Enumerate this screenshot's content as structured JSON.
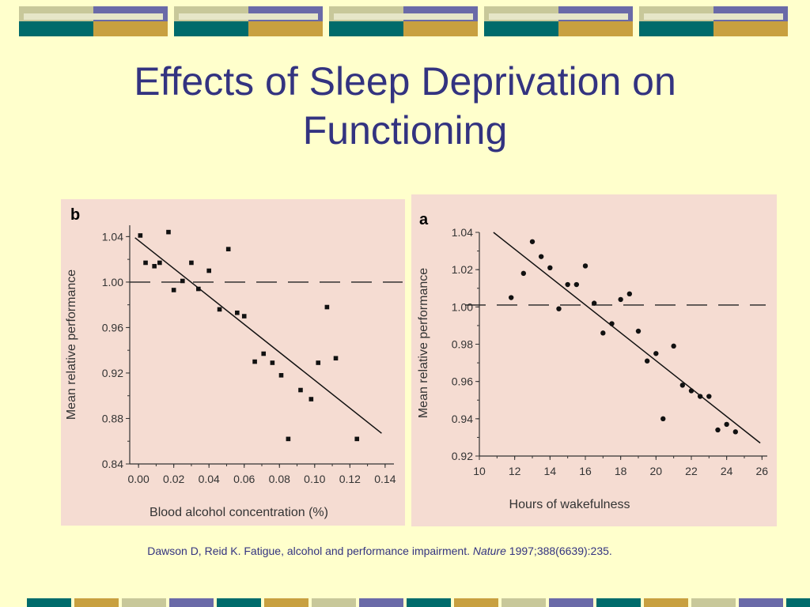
{
  "slide": {
    "title": "Effects of Sleep Deprivation on Functioning",
    "citation_text": "Dawson D, Reid K. Fatigue, alcohol and performance impairment. ",
    "citation_journal": "Nature",
    "citation_ref": " 1997;388(6639):235."
  },
  "colors": {
    "background": "#ffffcc",
    "title": "#333380",
    "panel": "#f5dcd2",
    "banner_teal": "#006b6b",
    "banner_gold": "#c8a040",
    "banner_purple": "#6a6aa8",
    "banner_olive": "#c8c89a"
  },
  "chart_data": [
    {
      "type": "scatter",
      "panel_label": "b",
      "xlabel": "Blood alcohol concentration (%)",
      "ylabel": "Mean relative performance",
      "xlim": [
        -0.005,
        0.145
      ],
      "ylim": [
        0.84,
        1.05
      ],
      "x_ticks": [
        "0.00",
        "0.02",
        "0.04",
        "0.06",
        "0.08",
        "0.10",
        "0.12",
        "0.14"
      ],
      "y_ticks": [
        "0.84",
        "0.88",
        "0.92",
        "0.96",
        "1.00",
        "1.04"
      ],
      "marker": "square",
      "points": [
        [
          0.001,
          1.041
        ],
        [
          0.004,
          1.017
        ],
        [
          0.009,
          1.014
        ],
        [
          0.012,
          1.017
        ],
        [
          0.017,
          1.044
        ],
        [
          0.02,
          0.993
        ],
        [
          0.025,
          1.001
        ],
        [
          0.03,
          1.017
        ],
        [
          0.034,
          0.994
        ],
        [
          0.04,
          1.01
        ],
        [
          0.046,
          0.976
        ],
        [
          0.051,
          1.029
        ],
        [
          0.056,
          0.973
        ],
        [
          0.06,
          0.97
        ],
        [
          0.066,
          0.93
        ],
        [
          0.071,
          0.937
        ],
        [
          0.076,
          0.929
        ],
        [
          0.081,
          0.918
        ],
        [
          0.085,
          0.862
        ],
        [
          0.092,
          0.905
        ],
        [
          0.098,
          0.897
        ],
        [
          0.102,
          0.929
        ],
        [
          0.107,
          0.978
        ],
        [
          0.112,
          0.933
        ],
        [
          0.124,
          0.862
        ]
      ],
      "regression": [
        [
          -0.002,
          1.039
        ],
        [
          0.138,
          0.867
        ]
      ],
      "reference_line": 1.0
    },
    {
      "type": "scatter",
      "panel_label": "a",
      "xlabel": "Hours of wakefulness",
      "ylabel": "Mean relative performance",
      "xlim": [
        10,
        26.3
      ],
      "ylim": [
        0.92,
        1.04
      ],
      "x_ticks": [
        "10",
        "12",
        "14",
        "16",
        "18",
        "20",
        "22",
        "24",
        "26"
      ],
      "y_ticks": [
        "0.92",
        "0.94",
        "0.96",
        "0.98",
        "1.00",
        "1.02",
        "1.04"
      ],
      "marker": "circle",
      "points": [
        [
          11.8,
          1.005
        ],
        [
          12.5,
          1.018
        ],
        [
          13.0,
          1.035
        ],
        [
          13.5,
          1.027
        ],
        [
          14.0,
          1.021
        ],
        [
          14.5,
          0.999
        ],
        [
          15.0,
          1.012
        ],
        [
          15.5,
          1.012
        ],
        [
          16.0,
          1.022
        ],
        [
          16.5,
          1.002
        ],
        [
          17.0,
          0.986
        ],
        [
          17.5,
          0.991
        ],
        [
          18.0,
          1.004
        ],
        [
          18.5,
          1.007
        ],
        [
          19.0,
          0.987
        ],
        [
          19.5,
          0.971
        ],
        [
          20.0,
          0.975
        ],
        [
          20.4,
          0.94
        ],
        [
          21.0,
          0.979
        ],
        [
          21.5,
          0.958
        ],
        [
          22.0,
          0.955
        ],
        [
          22.5,
          0.952
        ],
        [
          23.0,
          0.952
        ],
        [
          23.5,
          0.934
        ],
        [
          24.0,
          0.937
        ],
        [
          24.5,
          0.933
        ]
      ],
      "regression": [
        [
          10.8,
          1.04
        ],
        [
          25.9,
          0.927
        ]
      ],
      "reference_line": 1.001
    }
  ]
}
